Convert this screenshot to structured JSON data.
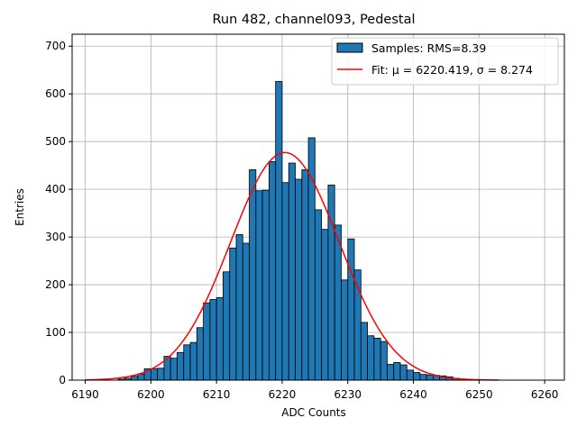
{
  "chart_data": {
    "type": "bar",
    "title": "Run 482, channel093, Pedestal",
    "xlabel": "ADC Counts",
    "ylabel": "Entries",
    "xlim": [
      6188,
      6263
    ],
    "ylim": [
      0,
      725
    ],
    "xticks": [
      6190,
      6200,
      6210,
      6220,
      6230,
      6240,
      6250,
      6260
    ],
    "yticks": [
      0,
      100,
      200,
      300,
      400,
      500,
      600,
      700
    ],
    "grid": true,
    "legend_position": "top-right",
    "colors": {
      "bars": "#1f77b4",
      "bar_edge": "#000000",
      "fit": "#ff0000",
      "grid": "#b0b0b0"
    },
    "series": [
      {
        "name": "Samples: RMS=8.39",
        "kind": "histogram",
        "bin_width": 1,
        "bin_starts": [
          6190,
          6191,
          6192,
          6193,
          6194,
          6195,
          6196,
          6197,
          6198,
          6199,
          6200,
          6201,
          6202,
          6203,
          6204,
          6205,
          6206,
          6207,
          6208,
          6209,
          6210,
          6211,
          6212,
          6213,
          6214,
          6215,
          6216,
          6217,
          6218,
          6219,
          6220,
          6221,
          6222,
          6223,
          6224,
          6225,
          6226,
          6227,
          6228,
          6229,
          6230,
          6231,
          6232,
          6233,
          6234,
          6235,
          6236,
          6237,
          6238,
          6239,
          6240,
          6241,
          6242,
          6243,
          6244,
          6245,
          6246,
          6247,
          6248,
          6249,
          6250,
          6251,
          6252
        ],
        "values": [
          0,
          0,
          0,
          0,
          0,
          2,
          4,
          8,
          13,
          24,
          24,
          25,
          50,
          46,
          58,
          74,
          79,
          110,
          162,
          169,
          173,
          227,
          277,
          305,
          287,
          441,
          397,
          398,
          458,
          626,
          414,
          455,
          421,
          441,
          508,
          357,
          316,
          409,
          325,
          210,
          296,
          231,
          121,
          93,
          88,
          81,
          33,
          37,
          32,
          21,
          16,
          12,
          11,
          10,
          9,
          7,
          4,
          0,
          0,
          0,
          0,
          0,
          0
        ]
      },
      {
        "name": "Fit: μ = 6220.419, σ = 8.274",
        "kind": "gaussian-fit",
        "mu": 6220.419,
        "sigma": 8.274,
        "amplitude": 477,
        "x_range": [
          6190,
          6253
        ]
      }
    ]
  }
}
